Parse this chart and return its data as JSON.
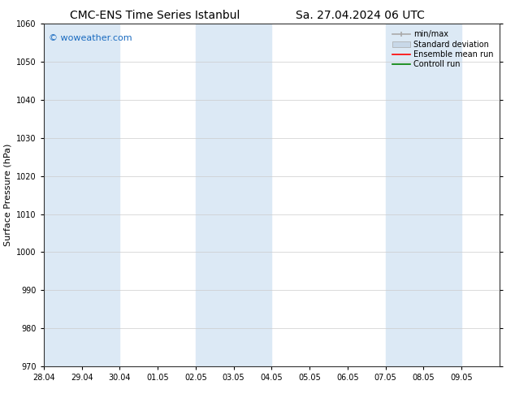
{
  "title_left": "CMC-ENS Time Series Istanbul",
  "title_right": "Sa. 27.04.2024 06 UTC",
  "ylabel": "Surface Pressure (hPa)",
  "ylim": [
    970,
    1060
  ],
  "yticks": [
    970,
    980,
    990,
    1000,
    1010,
    1020,
    1030,
    1040,
    1050,
    1060
  ],
  "xtick_labels": [
    "28.04",
    "29.04",
    "30.04",
    "01.05",
    "02.05",
    "03.05",
    "04.05",
    "05.05",
    "06.05",
    "07.05",
    "08.05",
    "09.05"
  ],
  "bg_color": "#ffffff",
  "plot_bg_color": "#ffffff",
  "shaded_band_color": "#dce9f5",
  "shaded_columns": [
    0,
    1,
    4,
    5,
    9,
    10
  ],
  "watermark": "© woweather.com",
  "watermark_color": "#1a6bc0",
  "legend_items": [
    {
      "label": "min/max",
      "color": "#aaaaaa",
      "lw": 1.5
    },
    {
      "label": "Standard deviation",
      "color": "#c8d8e8",
      "lw": 6
    },
    {
      "label": "Ensemble mean run",
      "color": "#ff0000",
      "lw": 1.5
    },
    {
      "label": "Controll run",
      "color": "#008000",
      "lw": 1.5
    }
  ],
  "font_family": "DejaVu Sans",
  "title_fontsize": 10,
  "tick_fontsize": 7,
  "ylabel_fontsize": 8,
  "watermark_fontsize": 8,
  "legend_fontsize": 7,
  "n_columns": 12
}
